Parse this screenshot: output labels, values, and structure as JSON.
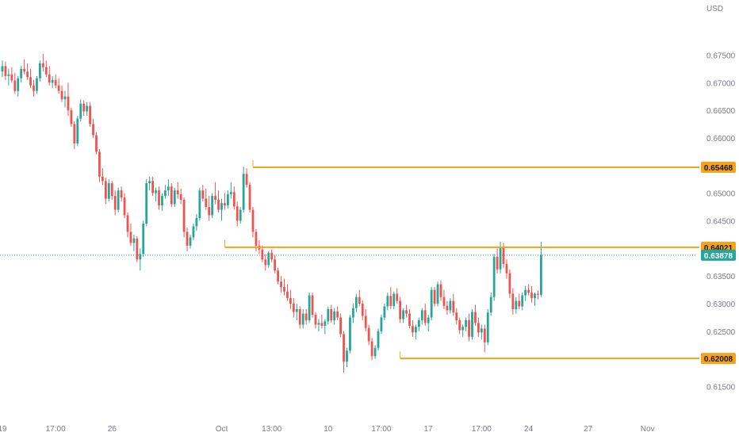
{
  "chart_data": {
    "type": "candlestick",
    "currency_label": "USD",
    "colors": {
      "up": "#26a69a",
      "down": "#ef5350",
      "level_line": "#f7a21b",
      "level_tag_bg": "#f7a21b",
      "current_tag_bg": "#26a69a",
      "axis_text": "#787b86",
      "dotted_line": "#26a69a"
    },
    "y_axis": {
      "min": 0.6125,
      "max": 0.6775,
      "ticks": [
        "0.67500",
        "0.67000",
        "0.66500",
        "0.66000",
        "0.65500",
        "0.65000",
        "0.64500",
        "0.64000",
        "0.63500",
        "0.63000",
        "0.62500",
        "0.62000",
        "0.61500"
      ]
    },
    "x_axis_labels": [
      {
        "text": "19",
        "index": 0
      },
      {
        "text": "17:00",
        "index": 17
      },
      {
        "text": "26",
        "index": 35
      },
      {
        "text": "Oct",
        "index": 70
      },
      {
        "text": "13:00",
        "index": 86
      },
      {
        "text": "10",
        "index": 104
      },
      {
        "text": "17:00",
        "index": 121
      },
      {
        "text": "17",
        "index": 136
      },
      {
        "text": "17:00",
        "index": 153
      },
      {
        "text": "24",
        "index": 168
      },
      {
        "text": "27",
        "index": 187
      },
      {
        "text": "Nov",
        "index": 206
      }
    ],
    "levels": [
      {
        "value": 0.65468,
        "label": "0.65468",
        "start_index": 80
      },
      {
        "value": 0.64021,
        "label": "0.64021",
        "start_index": 71
      },
      {
        "value": 0.62008,
        "label": "0.62008",
        "start_index": 127
      }
    ],
    "current_price": {
      "value": 0.63878,
      "label": "0.63878"
    },
    "candles": [
      [
        0.672,
        0.674,
        0.671,
        0.673
      ],
      [
        0.673,
        0.6738,
        0.6705,
        0.6712
      ],
      [
        0.6712,
        0.6725,
        0.6695,
        0.6715
      ],
      [
        0.6715,
        0.6728,
        0.67,
        0.6704
      ],
      [
        0.6704,
        0.6718,
        0.668,
        0.6685
      ],
      [
        0.6685,
        0.6712,
        0.6675,
        0.6708
      ],
      [
        0.6708,
        0.673,
        0.67,
        0.6725
      ],
      [
        0.6725,
        0.6742,
        0.6715,
        0.672
      ],
      [
        0.672,
        0.6735,
        0.6705,
        0.671
      ],
      [
        0.671,
        0.6725,
        0.669,
        0.6695
      ],
      [
        0.6695,
        0.6705,
        0.6675,
        0.6685
      ],
      [
        0.6685,
        0.6712,
        0.668,
        0.6708
      ],
      [
        0.6708,
        0.674,
        0.6702,
        0.6735
      ],
      [
        0.6735,
        0.6752,
        0.672,
        0.6728
      ],
      [
        0.6728,
        0.674,
        0.671,
        0.6715
      ],
      [
        0.6715,
        0.673,
        0.6695,
        0.67
      ],
      [
        0.67,
        0.6712,
        0.669,
        0.6705
      ],
      [
        0.6705,
        0.6715,
        0.669,
        0.6695
      ],
      [
        0.6695,
        0.6708,
        0.668,
        0.6685
      ],
      [
        0.6685,
        0.6695,
        0.6665,
        0.667
      ],
      [
        0.667,
        0.6685,
        0.6655,
        0.6675
      ],
      [
        0.6675,
        0.67,
        0.664,
        0.665
      ],
      [
        0.665,
        0.6655,
        0.662,
        0.6625
      ],
      [
        0.6625,
        0.663,
        0.658,
        0.659
      ],
      [
        0.659,
        0.664,
        0.6585,
        0.6635
      ],
      [
        0.6635,
        0.667,
        0.663,
        0.6662
      ],
      [
        0.6662,
        0.6668,
        0.664,
        0.6648
      ],
      [
        0.6648,
        0.6665,
        0.664,
        0.6658
      ],
      [
        0.6658,
        0.6665,
        0.662,
        0.6625
      ],
      [
        0.6625,
        0.6635,
        0.66,
        0.6605
      ],
      [
        0.6605,
        0.661,
        0.657,
        0.6575
      ],
      [
        0.6575,
        0.658,
        0.652,
        0.653
      ],
      [
        0.653,
        0.6545,
        0.6515,
        0.6522
      ],
      [
        0.6522,
        0.6528,
        0.648,
        0.649
      ],
      [
        0.649,
        0.6525,
        0.6485,
        0.6518
      ],
      [
        0.6518,
        0.6522,
        0.6488,
        0.6495
      ],
      [
        0.6495,
        0.6505,
        0.646,
        0.647
      ],
      [
        0.647,
        0.651,
        0.6465,
        0.6505
      ],
      [
        0.6505,
        0.6512,
        0.6485,
        0.6492
      ],
      [
        0.6492,
        0.65,
        0.6455,
        0.646
      ],
      [
        0.646,
        0.6465,
        0.642,
        0.643
      ],
      [
        0.643,
        0.6445,
        0.6405,
        0.641
      ],
      [
        0.641,
        0.6425,
        0.6395,
        0.6418
      ],
      [
        0.6418,
        0.6422,
        0.6375,
        0.638
      ],
      [
        0.638,
        0.64,
        0.636,
        0.639
      ],
      [
        0.639,
        0.645,
        0.6385,
        0.6445
      ],
      [
        0.6445,
        0.6525,
        0.644,
        0.6518
      ],
      [
        0.6518,
        0.653,
        0.6505,
        0.6522
      ],
      [
        0.6522,
        0.653,
        0.6495,
        0.65
      ],
      [
        0.65,
        0.651,
        0.6485,
        0.6505
      ],
      [
        0.6505,
        0.6512,
        0.647,
        0.6478
      ],
      [
        0.6478,
        0.65,
        0.6468,
        0.6495
      ],
      [
        0.6495,
        0.6515,
        0.649,
        0.6505
      ],
      [
        0.6505,
        0.6525,
        0.6495,
        0.6512
      ],
      [
        0.6512,
        0.6518,
        0.6475,
        0.648
      ],
      [
        0.648,
        0.651,
        0.6475,
        0.6505
      ],
      [
        0.6505,
        0.652,
        0.649,
        0.6498
      ],
      [
        0.6498,
        0.6508,
        0.648,
        0.6488
      ],
      [
        0.6488,
        0.6492,
        0.642,
        0.643
      ],
      [
        0.643,
        0.6438,
        0.6395,
        0.6405
      ],
      [
        0.6405,
        0.6425,
        0.64,
        0.642
      ],
      [
        0.642,
        0.6445,
        0.6415,
        0.644
      ],
      [
        0.644,
        0.6462,
        0.6432,
        0.6455
      ],
      [
        0.6455,
        0.651,
        0.645,
        0.6505
      ],
      [
        0.6505,
        0.6515,
        0.6485,
        0.649
      ],
      [
        0.649,
        0.6508,
        0.647,
        0.6475
      ],
      [
        0.6475,
        0.6495,
        0.645,
        0.646
      ],
      [
        0.646,
        0.65,
        0.6455,
        0.6495
      ],
      [
        0.6495,
        0.652,
        0.648,
        0.6488
      ],
      [
        0.6488,
        0.6505,
        0.6465,
        0.647
      ],
      [
        0.647,
        0.649,
        0.645,
        0.6482
      ],
      [
        0.6482,
        0.65,
        0.647,
        0.6478
      ],
      [
        0.6478,
        0.6505,
        0.6472,
        0.6498
      ],
      [
        0.6498,
        0.652,
        0.649,
        0.6502
      ],
      [
        0.6502,
        0.6512,
        0.647,
        0.6476
      ],
      [
        0.6476,
        0.6485,
        0.644,
        0.645
      ],
      [
        0.645,
        0.6475,
        0.6445,
        0.647
      ],
      [
        0.647,
        0.6548,
        0.6465,
        0.6535
      ],
      [
        0.6535,
        0.6545,
        0.651,
        0.6515
      ],
      [
        0.6515,
        0.652,
        0.6465,
        0.647
      ],
      [
        0.647,
        0.6475,
        0.642,
        0.643
      ],
      [
        0.643,
        0.6435,
        0.6395,
        0.6405
      ],
      [
        0.6405,
        0.6415,
        0.639,
        0.6398
      ],
      [
        0.6398,
        0.6405,
        0.6375,
        0.638
      ],
      [
        0.638,
        0.639,
        0.636,
        0.637
      ],
      [
        0.637,
        0.6395,
        0.6365,
        0.6392
      ],
      [
        0.6392,
        0.6398,
        0.6375,
        0.638
      ],
      [
        0.638,
        0.6388,
        0.6355,
        0.636
      ],
      [
        0.636,
        0.6365,
        0.6335,
        0.634
      ],
      [
        0.634,
        0.635,
        0.632,
        0.633
      ],
      [
        0.633,
        0.6345,
        0.6315,
        0.6322
      ],
      [
        0.6322,
        0.6335,
        0.6305,
        0.631
      ],
      [
        0.631,
        0.6325,
        0.629,
        0.63
      ],
      [
        0.63,
        0.631,
        0.6275,
        0.6285
      ],
      [
        0.6285,
        0.63,
        0.627,
        0.629
      ],
      [
        0.629,
        0.6295,
        0.6255,
        0.6262
      ],
      [
        0.6262,
        0.629,
        0.6255,
        0.6282
      ],
      [
        0.6282,
        0.629,
        0.6262,
        0.627
      ],
      [
        0.627,
        0.632,
        0.6265,
        0.6315
      ],
      [
        0.6315,
        0.632,
        0.6275,
        0.628
      ],
      [
        0.628,
        0.6285,
        0.6255,
        0.6262
      ],
      [
        0.6262,
        0.6272,
        0.625,
        0.6265
      ],
      [
        0.6265,
        0.628,
        0.6255,
        0.626
      ],
      [
        0.626,
        0.6272,
        0.6245,
        0.6268
      ],
      [
        0.6268,
        0.6295,
        0.6262,
        0.629
      ],
      [
        0.629,
        0.6298,
        0.6265,
        0.627
      ],
      [
        0.627,
        0.6292,
        0.6262,
        0.6286
      ],
      [
        0.6286,
        0.6295,
        0.627,
        0.6275
      ],
      [
        0.6275,
        0.6282,
        0.624,
        0.6245
      ],
      [
        0.6245,
        0.625,
        0.6175,
        0.6195
      ],
      [
        0.6195,
        0.622,
        0.6185,
        0.6215
      ],
      [
        0.6215,
        0.628,
        0.621,
        0.6275
      ],
      [
        0.6275,
        0.63,
        0.6265,
        0.6292
      ],
      [
        0.6292,
        0.6318,
        0.6285,
        0.6312
      ],
      [
        0.6312,
        0.6325,
        0.6295,
        0.63
      ],
      [
        0.63,
        0.6306,
        0.627,
        0.6278
      ],
      [
        0.6278,
        0.629,
        0.625,
        0.6256
      ],
      [
        0.6256,
        0.6262,
        0.6225,
        0.6232
      ],
      [
        0.6232,
        0.6238,
        0.6198,
        0.6205
      ],
      [
        0.6205,
        0.6225,
        0.62,
        0.622
      ],
      [
        0.622,
        0.6255,
        0.6215,
        0.625
      ],
      [
        0.625,
        0.628,
        0.6245,
        0.6275
      ],
      [
        0.6275,
        0.63,
        0.627,
        0.6295
      ],
      [
        0.6295,
        0.632,
        0.6288,
        0.6314
      ],
      [
        0.6314,
        0.633,
        0.629,
        0.6296
      ],
      [
        0.6296,
        0.6322,
        0.629,
        0.6318
      ],
      [
        0.6318,
        0.6328,
        0.63,
        0.6305
      ],
      [
        0.6305,
        0.6312,
        0.6265,
        0.6272
      ],
      [
        0.6272,
        0.6292,
        0.6265,
        0.6288
      ],
      [
        0.6288,
        0.6298,
        0.6275,
        0.6282
      ],
      [
        0.6282,
        0.629,
        0.6255,
        0.626
      ],
      [
        0.626,
        0.627,
        0.624,
        0.6248
      ],
      [
        0.6248,
        0.6262,
        0.6235,
        0.6258
      ],
      [
        0.6258,
        0.6275,
        0.625,
        0.627
      ],
      [
        0.627,
        0.6292,
        0.6262,
        0.6288
      ],
      [
        0.6288,
        0.63,
        0.626,
        0.6265
      ],
      [
        0.6265,
        0.628,
        0.625,
        0.6275
      ],
      [
        0.6275,
        0.633,
        0.627,
        0.6325
      ],
      [
        0.6325,
        0.633,
        0.6295,
        0.63
      ],
      [
        0.63,
        0.634,
        0.6295,
        0.6335
      ],
      [
        0.6335,
        0.6342,
        0.6305,
        0.6312
      ],
      [
        0.6312,
        0.6325,
        0.629,
        0.6296
      ],
      [
        0.6296,
        0.6305,
        0.628,
        0.6288
      ],
      [
        0.6288,
        0.631,
        0.6282,
        0.6305
      ],
      [
        0.6305,
        0.6318,
        0.6278,
        0.6284
      ],
      [
        0.6284,
        0.6292,
        0.6262,
        0.627
      ],
      [
        0.627,
        0.6275,
        0.6245,
        0.6252
      ],
      [
        0.6252,
        0.6262,
        0.624,
        0.6258
      ],
      [
        0.6258,
        0.6275,
        0.625,
        0.627
      ],
      [
        0.627,
        0.6282,
        0.6232,
        0.624
      ],
      [
        0.624,
        0.629,
        0.6235,
        0.6285
      ],
      [
        0.6285,
        0.6298,
        0.626,
        0.6265
      ],
      [
        0.6265,
        0.6275,
        0.624,
        0.6248
      ],
      [
        0.6248,
        0.6262,
        0.6235,
        0.6255
      ],
      [
        0.6255,
        0.6262,
        0.6212,
        0.623
      ],
      [
        0.623,
        0.629,
        0.6225,
        0.6284
      ],
      [
        0.6284,
        0.632,
        0.6278,
        0.6312
      ],
      [
        0.6312,
        0.639,
        0.6305,
        0.6385
      ],
      [
        0.6385,
        0.64,
        0.6355,
        0.6362
      ],
      [
        0.6362,
        0.6412,
        0.6355,
        0.6402
      ],
      [
        0.6402,
        0.641,
        0.6365,
        0.6372
      ],
      [
        0.6372,
        0.638,
        0.6345,
        0.6355
      ],
      [
        0.6355,
        0.6362,
        0.631,
        0.6318
      ],
      [
        0.6318,
        0.6328,
        0.628,
        0.629
      ],
      [
        0.629,
        0.6312,
        0.6282,
        0.6305
      ],
      [
        0.6305,
        0.6318,
        0.629,
        0.6295
      ],
      [
        0.6295,
        0.632,
        0.6288,
        0.6315
      ],
      [
        0.6315,
        0.6332,
        0.6305,
        0.6325
      ],
      [
        0.6325,
        0.6335,
        0.6315,
        0.632
      ],
      [
        0.632,
        0.6332,
        0.6302,
        0.631
      ],
      [
        0.631,
        0.632,
        0.6296,
        0.6318
      ],
      [
        0.6318,
        0.6324,
        0.6308,
        0.6316
      ],
      [
        0.6316,
        0.6412,
        0.6312,
        0.6388
      ]
    ]
  }
}
